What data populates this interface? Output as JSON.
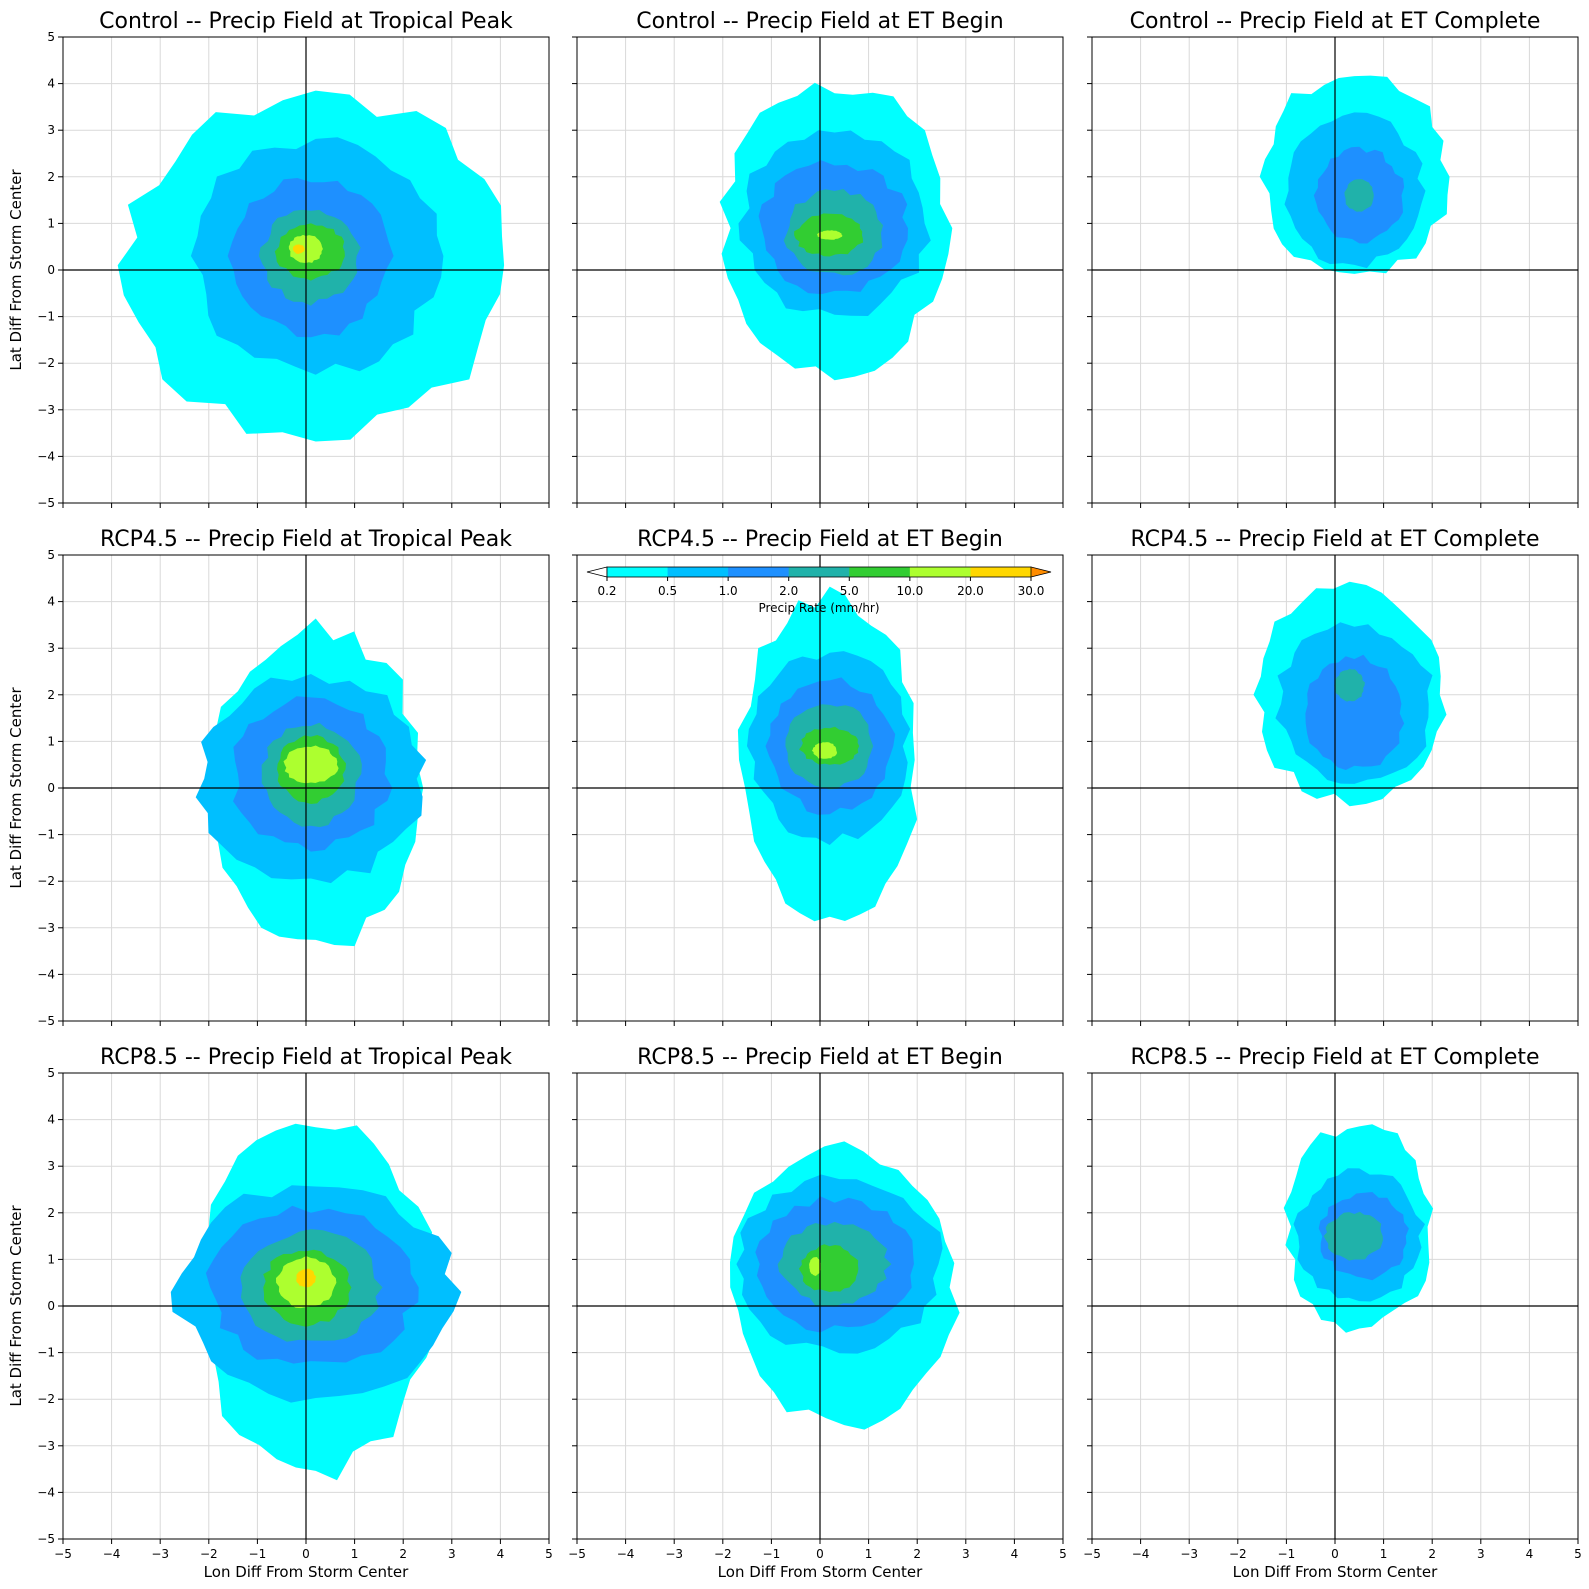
{
  "chart_data": {
    "type": "filled-contour-grid",
    "grid": "3x3",
    "xlim": [
      -5,
      5
    ],
    "ylim": [
      -5,
      5
    ],
    "xticks": [
      -5,
      -4,
      -3,
      -2,
      -1,
      0,
      1,
      2,
      3,
      4,
      5
    ],
    "yticks": [
      -5,
      -4,
      -3,
      -2,
      -1,
      0,
      1,
      2,
      3,
      4,
      5
    ],
    "xlabel": "Lon Diff From Storm Center",
    "ylabel": "Lat Diff From Storm Center",
    "grid_lines": true,
    "zero_lines": true,
    "colorbar": {
      "label": "Precip Rate (mm/hr)",
      "location": "inside RCP4.5 -- ET Begin panel, top",
      "levels": [
        "0.2",
        "0.5",
        "1.0",
        "2.0",
        "5.0",
        "10.0",
        "20.0",
        "30.0"
      ],
      "colors": [
        "#00ffff",
        "#00bfff",
        "#1e90ff",
        "#20b2aa",
        "#32cd32",
        "#adff2f",
        "#ffd700"
      ],
      "extend_min_color": "#ffffff",
      "extend_max_color": "#ff8c00"
    },
    "panels": [
      {
        "title": "Control -- Precip Field at Tropical Peak",
        "levels": [
          {
            "cx": 0.2,
            "cy": 0.1,
            "rx": 3.9,
            "ry": 3.6
          },
          {
            "cx": 0.2,
            "cy": 0.3,
            "rx": 2.5,
            "ry": 2.5
          },
          {
            "cx": 0.1,
            "cy": 0.3,
            "rx": 1.6,
            "ry": 1.7
          },
          {
            "cx": 0.1,
            "cy": 0.3,
            "rx": 1.0,
            "ry": 1.0
          },
          {
            "cx": 0.1,
            "cy": 0.4,
            "rx": 0.7,
            "ry": 0.6
          },
          {
            "cx": 0.0,
            "cy": 0.45,
            "rx": 0.35,
            "ry": 0.3
          },
          {
            "cx": -0.15,
            "cy": 0.45,
            "rx": 0.12,
            "ry": 0.1
          }
        ]
      },
      {
        "title": "Control -- Precip Field at ET Begin",
        "levels": [
          {
            "cx": 0.3,
            "cy": 0.9,
            "rx": 2.3,
            "ry": 3.1
          },
          {
            "cx": 0.3,
            "cy": 1.0,
            "rx": 1.9,
            "ry": 2.0
          },
          {
            "cx": 0.3,
            "cy": 0.9,
            "rx": 1.5,
            "ry": 1.4
          },
          {
            "cx": 0.3,
            "cy": 0.8,
            "rx": 1.0,
            "ry": 0.9
          },
          {
            "cx": 0.2,
            "cy": 0.75,
            "rx": 0.7,
            "ry": 0.45
          },
          {
            "cx": 0.2,
            "cy": 0.75,
            "rx": 0.25,
            "ry": 0.1
          }
        ]
      },
      {
        "title": "Control -- Precip Field at ET Complete",
        "levels": [
          {
            "cx": 0.4,
            "cy": 2.0,
            "rx": 1.9,
            "ry": 2.2
          },
          {
            "cx": 0.4,
            "cy": 1.7,
            "rx": 1.4,
            "ry": 1.6
          },
          {
            "cx": 0.5,
            "cy": 1.6,
            "rx": 0.9,
            "ry": 1.0
          },
          {
            "cx": 0.5,
            "cy": 1.6,
            "rx": 0.3,
            "ry": 0.35
          }
        ]
      },
      {
        "title": "RCP4.5 -- Precip Field at Tropical Peak",
        "levels": [
          {
            "cx": 0.2,
            "cy": 0.0,
            "rx": 2.2,
            "ry": 3.4
          },
          {
            "cx": 0.1,
            "cy": 0.2,
            "rx": 2.3,
            "ry": 2.2
          },
          {
            "cx": 0.1,
            "cy": 0.3,
            "rx": 1.6,
            "ry": 1.6
          },
          {
            "cx": 0.1,
            "cy": 0.3,
            "rx": 1.0,
            "ry": 1.1
          },
          {
            "cx": 0.1,
            "cy": 0.4,
            "rx": 0.7,
            "ry": 0.7
          },
          {
            "cx": 0.1,
            "cy": 0.5,
            "rx": 0.55,
            "ry": 0.4
          }
        ]
      },
      {
        "title": "RCP4.5 -- Precip Field at ET Begin",
        "levels": [
          {
            "cx": 0.2,
            "cy": 0.6,
            "rx": 1.8,
            "ry": 3.5
          },
          {
            "cx": 0.2,
            "cy": 0.9,
            "rx": 1.6,
            "ry": 2.0
          },
          {
            "cx": 0.2,
            "cy": 0.9,
            "rx": 1.3,
            "ry": 1.4
          },
          {
            "cx": 0.2,
            "cy": 0.9,
            "rx": 0.9,
            "ry": 0.9
          },
          {
            "cx": 0.2,
            "cy": 0.9,
            "rx": 0.6,
            "ry": 0.4
          },
          {
            "cx": 0.1,
            "cy": 0.8,
            "rx": 0.25,
            "ry": 0.18
          }
        ]
      },
      {
        "title": "RCP4.5 -- Precip Field at ET Complete",
        "levels": [
          {
            "cx": 0.3,
            "cy": 2.0,
            "rx": 1.9,
            "ry": 2.3
          },
          {
            "cx": 0.4,
            "cy": 1.8,
            "rx": 1.6,
            "ry": 1.7
          },
          {
            "cx": 0.4,
            "cy": 1.6,
            "rx": 1.0,
            "ry": 1.2
          },
          {
            "cx": 0.3,
            "cy": 2.2,
            "rx": 0.3,
            "ry": 0.35
          }
        ]
      },
      {
        "title": "RCP8.5 -- Precip Field at Tropical Peak",
        "levels": [
          {
            "cx": 0.2,
            "cy": 0.2,
            "rx": 2.4,
            "ry": 3.8
          },
          {
            "cx": 0.2,
            "cy": 0.3,
            "rx": 2.8,
            "ry": 2.3
          },
          {
            "cx": 0.1,
            "cy": 0.4,
            "rx": 2.1,
            "ry": 1.7
          },
          {
            "cx": 0.1,
            "cy": 0.4,
            "rx": 1.4,
            "ry": 1.2
          },
          {
            "cx": 0.0,
            "cy": 0.4,
            "rx": 0.9,
            "ry": 0.8
          },
          {
            "cx": 0.0,
            "cy": 0.5,
            "rx": 0.6,
            "ry": 0.55
          },
          {
            "cx": 0.0,
            "cy": 0.6,
            "rx": 0.2,
            "ry": 0.2
          }
        ]
      },
      {
        "title": "RCP8.5 -- Precip Field at ET Begin",
        "levels": [
          {
            "cx": 0.5,
            "cy": 0.4,
            "rx": 2.3,
            "ry": 3.0
          },
          {
            "cx": 0.4,
            "cy": 0.9,
            "rx": 2.1,
            "ry": 1.9
          },
          {
            "cx": 0.3,
            "cy": 0.9,
            "rx": 1.6,
            "ry": 1.4
          },
          {
            "cx": 0.3,
            "cy": 0.9,
            "rx": 1.1,
            "ry": 0.9
          },
          {
            "cx": 0.2,
            "cy": 0.8,
            "rx": 0.6,
            "ry": 0.5
          },
          {
            "cx": -0.1,
            "cy": 0.85,
            "rx": 0.12,
            "ry": 0.2
          }
        ]
      },
      {
        "title": "RCP8.5 -- Precip Field at ET Complete",
        "levels": [
          {
            "cx": 0.5,
            "cy": 1.7,
            "rx": 1.5,
            "ry": 2.2
          },
          {
            "cx": 0.5,
            "cy": 1.5,
            "rx": 1.3,
            "ry": 1.4
          },
          {
            "cx": 0.6,
            "cy": 1.5,
            "rx": 0.9,
            "ry": 0.9
          },
          {
            "cx": 0.4,
            "cy": 1.5,
            "rx": 0.6,
            "ry": 0.5
          }
        ]
      }
    ]
  }
}
